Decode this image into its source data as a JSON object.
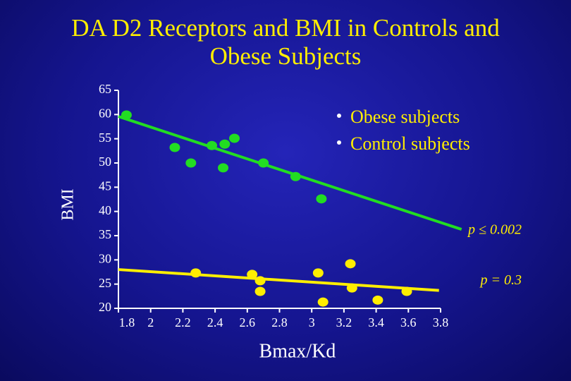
{
  "chart_data": {
    "type": "scatter",
    "title": "DA D2 Receptors and BMI in Controls and Obese Subjects",
    "x_label": "Bmax/Kd",
    "y_label": "BMI",
    "xlim": [
      1.8,
      3.8
    ],
    "xticks": [
      1.8,
      2,
      2.2,
      2.4,
      2.6,
      2.8,
      3,
      3.2,
      3.4,
      3.6,
      3.8
    ],
    "ylim": [
      20,
      65
    ],
    "yticks": [
      20,
      25,
      30,
      35,
      40,
      45,
      50,
      55,
      60,
      65
    ],
    "legend_position": "upper right",
    "series": [
      {
        "name": "Obese subjects",
        "color": "#22dd22",
        "x": [
          1.85,
          2.15,
          2.25,
          2.38,
          2.45,
          2.46,
          2.52,
          2.7,
          2.9,
          3.06
        ],
        "values": [
          59.9,
          53.2,
          50.0,
          53.6,
          49.0,
          53.9,
          55.1,
          50.0,
          47.2,
          42.6
        ],
        "fit": {
          "x": [
            1.8,
            3.93
          ],
          "y": [
            59.6,
            36.3
          ]
        },
        "annotation": "p ≤ 0.002"
      },
      {
        "name": "Control subjects",
        "color": "#ffee00",
        "x": [
          2.28,
          2.63,
          2.68,
          2.68,
          3.04,
          3.24,
          3.25,
          3.07,
          3.41,
          3.59
        ],
        "values": [
          27.3,
          27.0,
          25.7,
          23.5,
          27.3,
          29.2,
          24.2,
          21.3,
          21.7,
          23.5
        ],
        "fit": {
          "x": [
            1.8,
            3.79
          ],
          "y": [
            28.0,
            23.7
          ]
        },
        "annotation": "p = 0.3"
      }
    ]
  }
}
